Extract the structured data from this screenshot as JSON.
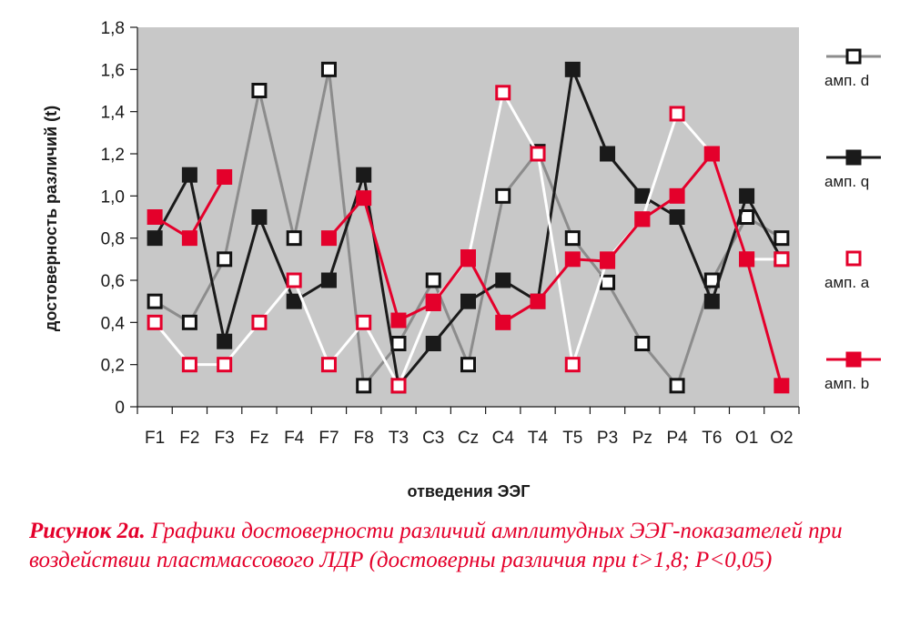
{
  "chart_data": {
    "type": "line",
    "ylabel": "достоверность различий (t)",
    "xlabel": "отведения ЭЭГ",
    "ylim": [
      0,
      1.8
    ],
    "yticks": [
      "0",
      "0,2",
      "0,4",
      "0,6",
      "0,8",
      "1,0",
      "1,2",
      "1,4",
      "1,6",
      "1,8"
    ],
    "ytick_values": [
      0,
      0.2,
      0.4,
      0.6,
      0.8,
      1.0,
      1.2,
      1.4,
      1.6,
      1.8
    ],
    "categories": [
      "F1",
      "F2",
      "F3",
      "Fz",
      "F4",
      "F7",
      "F8",
      "T3",
      "C3",
      "Cz",
      "C4",
      "T4",
      "T5",
      "P3",
      "Pz",
      "P4",
      "T6",
      "O1",
      "O2"
    ],
    "grid": false,
    "background": "#c8c8c8",
    "legend_position": "right",
    "series": [
      {
        "name": "амп. d",
        "color": "#8c8c8c",
        "marker_fill": "#ffffff",
        "marker_stroke": "#111111",
        "values": [
          0.5,
          0.4,
          0.7,
          1.5,
          0.8,
          1.6,
          0.1,
          0.3,
          0.6,
          0.2,
          1.0,
          1.21,
          0.8,
          0.59,
          0.3,
          0.1,
          0.6,
          0.9,
          0.8
        ]
      },
      {
        "name": "амп. q",
        "color": "#1a1a1a",
        "marker_fill": "#1a1a1a",
        "marker_stroke": "#1a1a1a",
        "values": [
          0.8,
          1.1,
          0.31,
          0.9,
          0.5,
          0.6,
          1.1,
          0.1,
          0.3,
          0.5,
          0.6,
          0.5,
          1.6,
          1.2,
          1.0,
          0.9,
          0.5,
          1.0,
          0.7
        ]
      },
      {
        "name": "амп. a",
        "color": "#ffffff",
        "marker_fill": "#ffffff",
        "marker_stroke": "#e4002b",
        "values": [
          0.4,
          0.2,
          0.2,
          0.4,
          0.6,
          0.2,
          0.4,
          0.1,
          0.5,
          0.7,
          1.49,
          1.2,
          0.2,
          0.7,
          0.89,
          1.39,
          1.2,
          0.7,
          0.7
        ]
      },
      {
        "name": "амп. b",
        "color": "#e4002b",
        "marker_fill": "#e4002b",
        "marker_stroke": "#e4002b",
        "values": [
          0.9,
          0.8,
          1.09,
          null,
          null,
          0.8,
          0.99,
          0.41,
          0.49,
          0.71,
          0.4,
          0.5,
          0.7,
          0.69,
          0.89,
          1.0,
          1.2,
          0.7,
          0.1
        ]
      }
    ]
  },
  "caption": {
    "label": "Рисунок 2а.",
    "text": "Графики достоверности различий амплитудных ЭЭГ-показателей при воздействии пластмассового ЛДР (достоверны различия при t>1,8; P<0,05)"
  }
}
